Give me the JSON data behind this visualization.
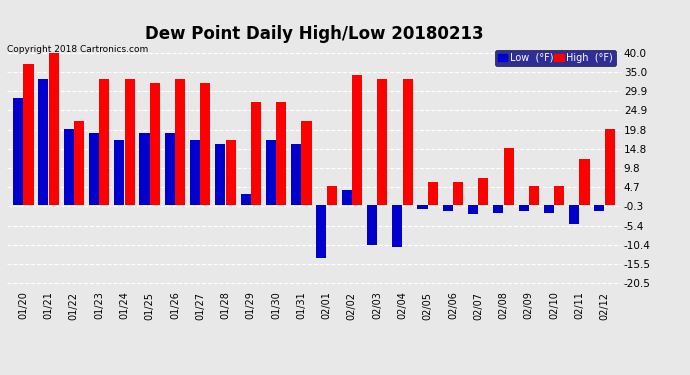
{
  "title": "Dew Point Daily High/Low 20180213",
  "copyright": "Copyright 2018 Cartronics.com",
  "dates": [
    "01/20",
    "01/21",
    "01/22",
    "01/23",
    "01/24",
    "01/25",
    "01/26",
    "01/27",
    "01/28",
    "01/29",
    "01/30",
    "01/31",
    "02/01",
    "02/02",
    "02/03",
    "02/04",
    "02/05",
    "02/06",
    "02/07",
    "02/08",
    "02/09",
    "02/10",
    "02/11",
    "02/12"
  ],
  "high": [
    37.0,
    40.0,
    22.0,
    33.0,
    33.0,
    32.0,
    33.0,
    32.0,
    17.0,
    27.0,
    27.0,
    22.0,
    5.0,
    34.0,
    33.0,
    33.0,
    6.0,
    6.0,
    7.0,
    15.0,
    5.0,
    5.0,
    12.0,
    20.0
  ],
  "low": [
    28.0,
    33.0,
    20.0,
    19.0,
    17.0,
    19.0,
    19.0,
    17.0,
    16.0,
    3.0,
    17.0,
    16.0,
    -14.0,
    4.0,
    -10.5,
    -11.0,
    -1.0,
    -1.5,
    -2.5,
    -2.0,
    -1.5,
    -2.0,
    -5.0,
    -1.5
  ],
  "yticks": [
    40.0,
    35.0,
    29.9,
    24.9,
    19.8,
    14.8,
    9.8,
    4.7,
    -0.3,
    -5.4,
    -10.4,
    -15.5,
    -20.5
  ],
  "ylim": [
    -22,
    42
  ],
  "bar_color_high": "#ff0000",
  "bar_color_low": "#0000cc",
  "bg_color": "#e8e8e8",
  "grid_color": "#ffffff",
  "title_fontsize": 12,
  "legend_high_label": "High  (°F)",
  "legend_low_label": "Low  (°F)"
}
